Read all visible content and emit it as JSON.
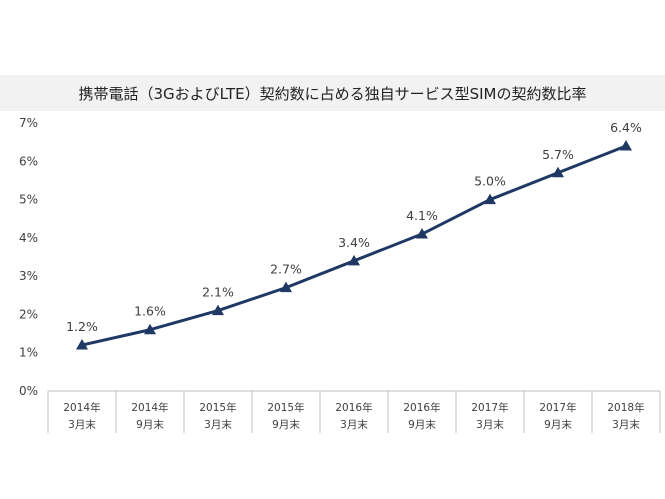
{
  "chart_data": {
    "type": "line",
    "title": "携帯電話（3GおよびLTE）契約数に占める独自サービス型SIMの契約数比率",
    "xlabel": "",
    "ylabel": "",
    "categories": [
      [
        "2014年",
        "3月末"
      ],
      [
        "2014年",
        "9月末"
      ],
      [
        "2015年",
        "3月末"
      ],
      [
        "2015年",
        "9月末"
      ],
      [
        "2016年",
        "3月末"
      ],
      [
        "2016年",
        "9月末"
      ],
      [
        "2017年",
        "3月末"
      ],
      [
        "2017年",
        "9月末"
      ],
      [
        "2018年",
        "3月末"
      ]
    ],
    "values": [
      1.2,
      1.6,
      2.1,
      2.7,
      3.4,
      4.1,
      5.0,
      5.7,
      6.4
    ],
    "data_labels": [
      "1.2%",
      "1.6%",
      "2.1%",
      "2.7%",
      "3.4%",
      "4.1%",
      "5.0%",
      "5.7%",
      "6.4%"
    ],
    "y_ticks": [
      0,
      1,
      2,
      3,
      4,
      5,
      6,
      7
    ],
    "y_tick_labels": [
      "0%",
      "1%",
      "2%",
      "3%",
      "4%",
      "5%",
      "6%",
      "7%"
    ],
    "ylim": [
      0,
      7
    ],
    "grid": false,
    "marker": "triangle",
    "colors": {
      "line": "#1f3864",
      "marker": "#1f3864",
      "axis": "#bfbfbf",
      "title_bg": "#f2f2f2"
    }
  }
}
